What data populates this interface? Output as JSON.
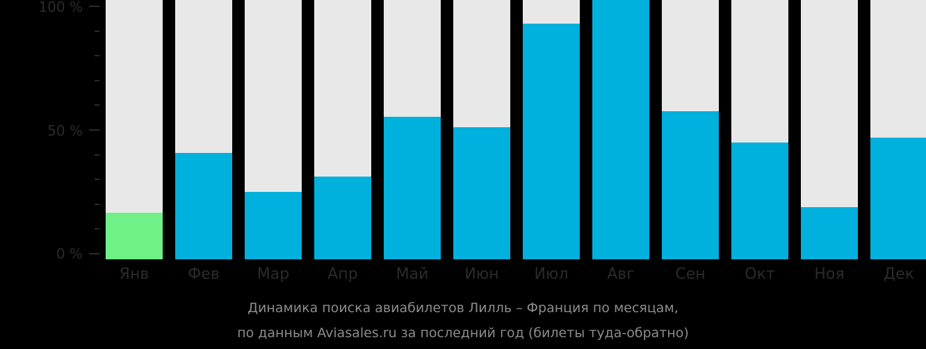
{
  "chart_data": {
    "type": "bar",
    "title": "Динамика поиска авиабилетов Лилль – Франция по месяцам,",
    "subtitle": "по данным Aviasales.ru за последний год (билеты туда-обратно)",
    "xlabel": "",
    "ylabel": "",
    "ylim": [
      0,
      100
    ],
    "yticks": [
      "0 %",
      "50 %",
      "100 %"
    ],
    "grid": false,
    "categories": [
      "Янв",
      "Фев",
      "Мар",
      "Апр",
      "Май",
      "Июн",
      "Июл",
      "Авг",
      "Сен",
      "Окт",
      "Ноя",
      "Дек"
    ],
    "values": [
      18,
      41,
      26,
      32,
      55,
      51,
      91,
      100,
      57,
      45,
      20,
      47
    ],
    "highlight_index": 0,
    "colors": {
      "bar": "#00b0dd",
      "highlight": "#6ff188",
      "track": "#e8e8e8",
      "background": "#000000"
    }
  },
  "axis": {
    "y_top": "100 %",
    "y_mid": "50 %",
    "y_bottom": "0 %"
  },
  "caption": {
    "line1": "Динамика поиска авиабилетов Лилль – Франция по месяцам,",
    "line2": "по данным Aviasales.ru за последний год (билеты туда-обратно)"
  }
}
